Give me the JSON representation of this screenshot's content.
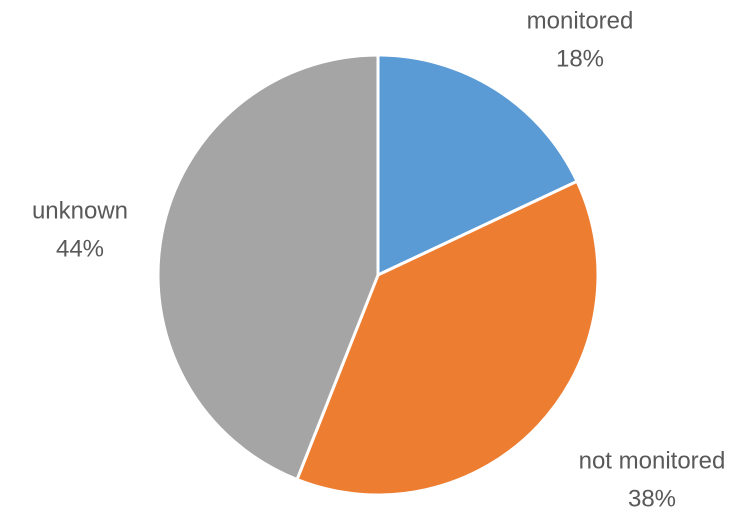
{
  "chart_data": {
    "type": "pie",
    "categories": [
      "monitored",
      "not monitored",
      "unknown"
    ],
    "values": [
      18,
      38,
      44
    ],
    "value_labels": [
      "18%",
      "38%",
      "44%"
    ],
    "colors": [
      "#5b9bd5",
      "#ed7d31",
      "#a5a5a5"
    ]
  }
}
